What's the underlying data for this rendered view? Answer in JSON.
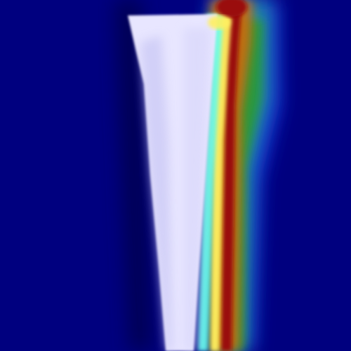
{
  "image": {
    "kind": "heatmap-overlay",
    "colormap": "jet",
    "colors": {
      "background": "#00007f",
      "pale_band": "#e8e6ff",
      "pale_shadow": "#c8c6f4",
      "cyan": "#66ffee",
      "yellow": "#fff060",
      "orange": "#ff9010",
      "red": "#9a0808",
      "green": "#2a9a30",
      "teal": "#209a9a",
      "blue_edge": "#1c3cff"
    }
  }
}
